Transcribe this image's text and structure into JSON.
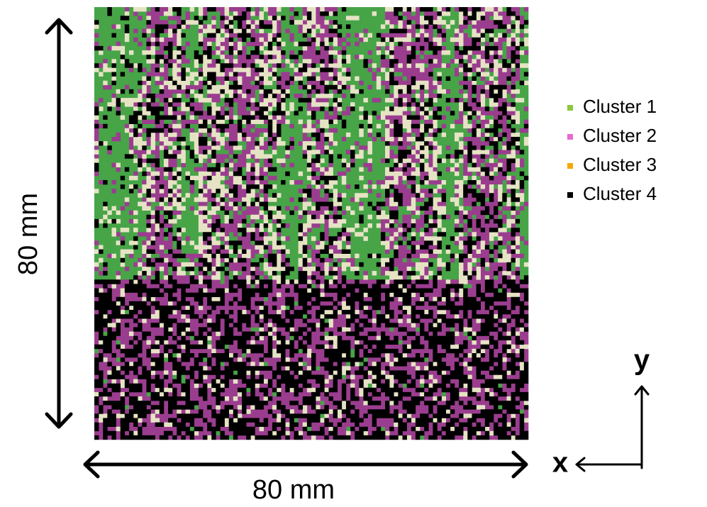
{
  "figure": {
    "map_colors": [
      "#47a447",
      "#9b3d8f",
      "#e6e3c5",
      "#000000"
    ],
    "height_label": "80 mm",
    "width_label": "80 mm",
    "axis_x": "x",
    "axis_y": "y",
    "legend": [
      {
        "label": "Cluster 1",
        "color": "#8dc63f"
      },
      {
        "label": "Cluster 2",
        "color": "#e86ad0"
      },
      {
        "label": "Cluster 3",
        "color": "#f5a800"
      },
      {
        "label": "Cluster 4",
        "color": "#000000"
      }
    ]
  }
}
